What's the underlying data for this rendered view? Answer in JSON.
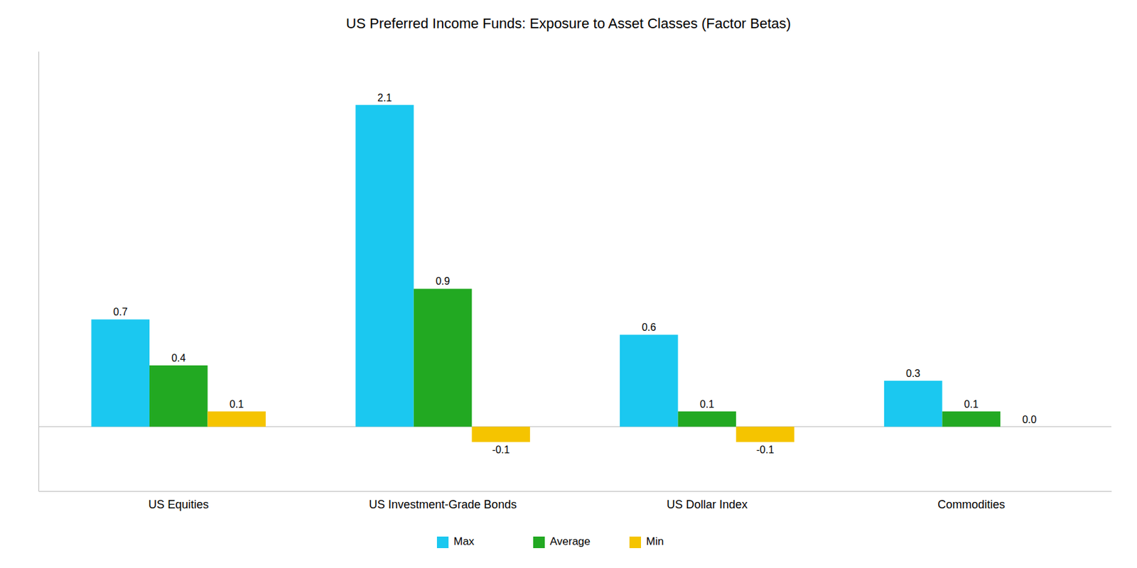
{
  "chart_data": {
    "type": "bar",
    "title": "US Preferred Income Funds: Exposure to Asset Classes (Factor Betas)",
    "categories": [
      "US Equities",
      "US Investment-Grade Bonds",
      "US Dollar Index",
      "Commodities"
    ],
    "series": [
      {
        "name": "Max",
        "color": "#1BC8F0",
        "values": [
          0.7,
          2.1,
          0.6,
          0.3
        ],
        "value_labels": [
          "0.7",
          "2.1",
          "0.6",
          "0.3"
        ]
      },
      {
        "name": "Average",
        "color": "#22A922",
        "values": [
          0.4,
          0.9,
          0.1,
          0.1
        ],
        "value_labels": [
          "0.4",
          "0.9",
          "0.1",
          "0.1"
        ]
      },
      {
        "name": "Min",
        "color": "#F5C400",
        "values": [
          0.1,
          -0.1,
          -0.1,
          0.0
        ],
        "value_labels": [
          "0.1",
          "-0.1",
          "-0.1",
          "0.0"
        ]
      }
    ],
    "ylim": [
      -0.42,
      2.45
    ],
    "grid": false,
    "legend": "bottom",
    "data_labels": true,
    "tick_labels": "x"
  }
}
